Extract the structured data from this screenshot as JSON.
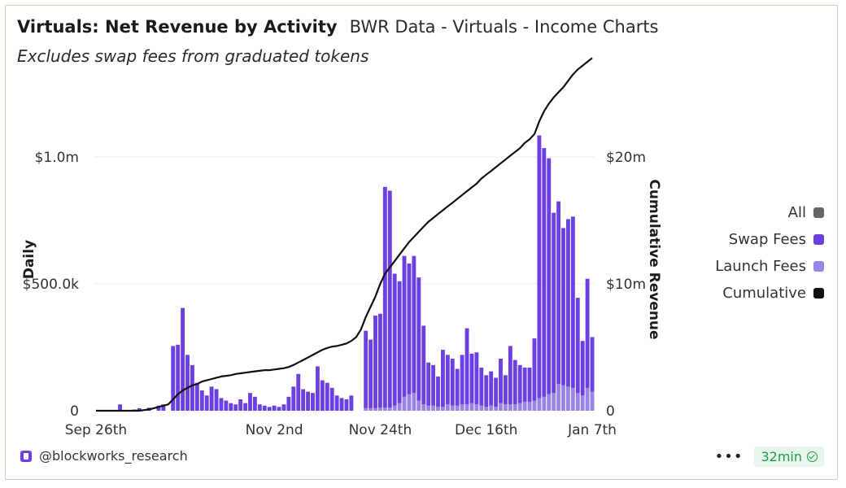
{
  "header": {
    "title": "Virtuals: Net Revenue by Activity",
    "source": "BWR Data - Virtuals - Income Charts",
    "subtitle": "Excludes swap fees from graduated tokens"
  },
  "legend": {
    "items": [
      {
        "label": "All",
        "color": "#666666"
      },
      {
        "label": "Swap Fees",
        "color": "#6b3fe0"
      },
      {
        "label": "Launch Fees",
        "color": "#9a83e6"
      },
      {
        "label": "Cumulative",
        "color": "#111111"
      }
    ]
  },
  "footer": {
    "handle": "@blockworks_research",
    "more": "•••",
    "badge": "32min"
  },
  "chart_data": {
    "type": "bar",
    "x_tick_labels": [
      "Sep 26th",
      "Nov 2nd",
      "Nov 24th",
      "Dec 16th",
      "Jan 7th"
    ],
    "x_tick_index": [
      0,
      37,
      59,
      81,
      103
    ],
    "left_axis": {
      "title": "Daily",
      "ticks": [
        0,
        500000,
        1000000
      ],
      "tick_labels": [
        "0",
        "$500.0k",
        "$1.0m"
      ],
      "range": [
        0,
        1200000
      ]
    },
    "right_axis": {
      "title": "Cumulative Revenue",
      "ticks": [
        0,
        10000000,
        20000000
      ],
      "tick_labels": [
        "0",
        "$10m",
        "$20m"
      ],
      "range": [
        0,
        24000000
      ]
    },
    "grid": true,
    "legend_position": "right",
    "series": [
      {
        "name": "Swap Fees",
        "axis": "left",
        "values": [
          0,
          0,
          0,
          0,
          0,
          25000,
          0,
          0,
          5000,
          10000,
          0,
          12000,
          0,
          20000,
          25000,
          0,
          255000,
          260000,
          405000,
          220000,
          180000,
          110000,
          80000,
          60000,
          95000,
          85000,
          50000,
          40000,
          30000,
          25000,
          45000,
          30000,
          70000,
          55000,
          25000,
          20000,
          15000,
          20000,
          15000,
          25000,
          55000,
          95000,
          145000,
          85000,
          75000,
          70000,
          175000,
          120000,
          110000,
          90000,
          60000,
          50000,
          45000,
          60000,
          0,
          0,
          305000,
          270000,
          365000,
          370000,
          870000,
          855000,
          520000,
          480000,
          555000,
          515000,
          540000,
          485000,
          310000,
          170000,
          160000,
          120000,
          225000,
          195000,
          185000,
          145000,
          195000,
          300000,
          195000,
          205000,
          150000,
          125000,
          135000,
          115000,
          175000,
          115000,
          230000,
          175000,
          150000,
          135000,
          135000,
          245000,
          1035000,
          980000,
          930000,
          710000,
          720000,
          620000,
          660000,
          675000,
          375000,
          215000,
          430000,
          215000
        ],
        "scale": "daily"
      },
      {
        "name": "Launch Fees",
        "axis": "left",
        "values": [
          0,
          0,
          0,
          0,
          0,
          0,
          0,
          0,
          0,
          0,
          0,
          0,
          0,
          0,
          0,
          0,
          0,
          0,
          0,
          0,
          0,
          0,
          0,
          0,
          0,
          0,
          0,
          0,
          0,
          0,
          0,
          0,
          0,
          0,
          0,
          0,
          0,
          0,
          0,
          0,
          0,
          0,
          0,
          0,
          0,
          0,
          0,
          0,
          0,
          0,
          0,
          0,
          0,
          0,
          0,
          0,
          10000,
          10000,
          10000,
          12000,
          12000,
          12000,
          20000,
          30000,
          55000,
          65000,
          70000,
          40000,
          25000,
          20000,
          20000,
          15000,
          15000,
          25000,
          20000,
          20000,
          25000,
          25000,
          30000,
          25000,
          20000,
          15000,
          20000,
          15000,
          30000,
          25000,
          25000,
          25000,
          30000,
          35000,
          35000,
          40000,
          50000,
          55000,
          65000,
          70000,
          105000,
          100000,
          95000,
          90000,
          70000,
          60000,
          90000,
          75000
        ]
      },
      {
        "name": "Cumulative",
        "axis": "right",
        "type": "line",
        "values": [
          0,
          0,
          0,
          0,
          0,
          0,
          0,
          0,
          0,
          0,
          50000,
          100000,
          200000,
          300000,
          400000,
          500000,
          900000,
          1300000,
          1600000,
          1800000,
          2000000,
          2100000,
          2300000,
          2400000,
          2500000,
          2600000,
          2700000,
          2750000,
          2800000,
          2900000,
          2950000,
          3000000,
          3050000,
          3100000,
          3150000,
          3200000,
          3200000,
          3250000,
          3300000,
          3350000,
          3450000,
          3600000,
          3800000,
          4000000,
          4200000,
          4400000,
          4600000,
          4800000,
          4950000,
          5050000,
          5100000,
          5200000,
          5300000,
          5500000,
          5800000,
          6400000,
          7400000,
          8200000,
          9000000,
          10000000,
          10800000,
          11300000,
          11800000,
          12300000,
          12800000,
          13300000,
          13700000,
          14100000,
          14500000,
          14900000,
          15200000,
          15500000,
          15800000,
          16100000,
          16400000,
          16700000,
          17000000,
          17300000,
          17600000,
          17900000,
          18300000,
          18600000,
          18900000,
          19200000,
          19500000,
          19800000,
          20100000,
          20400000,
          20700000,
          21100000,
          21400000,
          21800000,
          22800000,
          23600000,
          24200000,
          24700000,
          25100000,
          25500000,
          26000000,
          26500000,
          26900000,
          27200000,
          27500000,
          27800000
        ]
      }
    ]
  }
}
